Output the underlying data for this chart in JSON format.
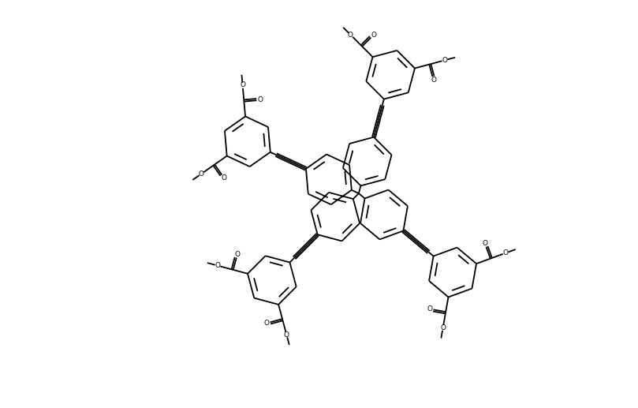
{
  "bg_color": "#ffffff",
  "line_color": "#000000",
  "lw": 1.3,
  "figsize": [
    8.09,
    5.17
  ],
  "dpi": 100,
  "xlim": [
    0,
    8.09
  ],
  "ylim": [
    0,
    5.17
  ]
}
